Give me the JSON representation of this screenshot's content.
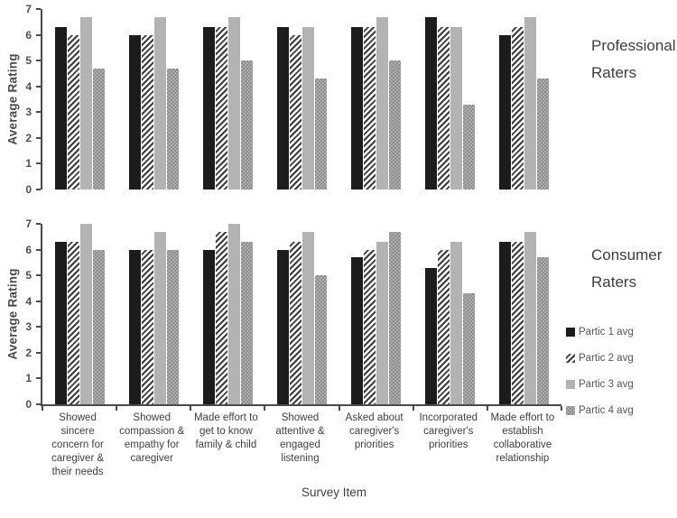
{
  "figure": {
    "x_axis_title": "Survey Item",
    "panel_labels": {
      "top": "Professional Raters",
      "bottom": "Consumer Raters"
    }
  },
  "colors": {
    "background": "#ffffff",
    "axis": "#4a4a4a",
    "text": "#3a3a3a",
    "series_fills": [
      "#1c1c1c",
      "white-with-dark-diagonal-hatch",
      "#b3b3b3",
      "gray-checker-dots"
    ]
  },
  "legend": {
    "position": "right",
    "entries": [
      "Partic 1 avg",
      "Partic 2 avg",
      "Partic 3 avg",
      "Partic 4 avg"
    ]
  },
  "chart_data": [
    {
      "type": "bar",
      "title": "Professional Raters",
      "ylabel": "Average Rating",
      "xlabel": "Survey Item",
      "ylim": [
        0,
        7
      ],
      "yticks": [
        0,
        1,
        2,
        3,
        4,
        5,
        6,
        7
      ],
      "grid": false,
      "x_axis_line": false,
      "categories": [
        "Showed sincere concern for caregiver & their needs",
        "Showed compassion & empathy for caregiver",
        "Made effort to get to know family & child",
        "Showed attentive & engaged listening",
        "Asked about caregiver's priorities",
        "Incorporated caregiver's priorities",
        "Made effort to establish collaborative relationship"
      ],
      "series": [
        {
          "name": "Partic 1 avg",
          "values": [
            6.3,
            6.0,
            6.3,
            6.3,
            6.3,
            6.7,
            6.0
          ]
        },
        {
          "name": "Partic 2 avg",
          "values": [
            6.0,
            6.0,
            6.3,
            6.0,
            6.3,
            6.3,
            6.3
          ]
        },
        {
          "name": "Partic 3 avg",
          "values": [
            6.7,
            6.7,
            6.7,
            6.3,
            6.7,
            6.3,
            6.7
          ]
        },
        {
          "name": "Partic 4 avg",
          "values": [
            4.7,
            4.7,
            5.0,
            4.3,
            5.0,
            3.3,
            4.3
          ]
        }
      ]
    },
    {
      "type": "bar",
      "title": "Consumer Raters",
      "ylabel": "Average Rating",
      "xlabel": "Survey Item",
      "ylim": [
        0,
        7
      ],
      "yticks": [
        0,
        1,
        2,
        3,
        4,
        5,
        6,
        7
      ],
      "grid": false,
      "x_axis_line": true,
      "categories": [
        "Showed sincere concern for caregiver & their needs",
        "Showed compassion & empathy for caregiver",
        "Made effort to get to know family & child",
        "Showed attentive & engaged listening",
        "Asked about caregiver's priorities",
        "Incorporated caregiver's priorities",
        "Made effort to establish collaborative relationship"
      ],
      "series": [
        {
          "name": "Partic 1 avg",
          "values": [
            6.3,
            6.0,
            6.0,
            6.0,
            5.7,
            5.3,
            6.3
          ]
        },
        {
          "name": "Partic 2 avg",
          "values": [
            6.3,
            6.0,
            6.7,
            6.3,
            6.0,
            6.0,
            6.3
          ]
        },
        {
          "name": "Partic 3 avg",
          "values": [
            7.0,
            6.7,
            7.0,
            6.7,
            6.3,
            6.3,
            6.7
          ]
        },
        {
          "name": "Partic 4 avg",
          "values": [
            6.0,
            6.0,
            6.3,
            5.0,
            6.7,
            4.3,
            5.7
          ]
        }
      ]
    }
  ]
}
